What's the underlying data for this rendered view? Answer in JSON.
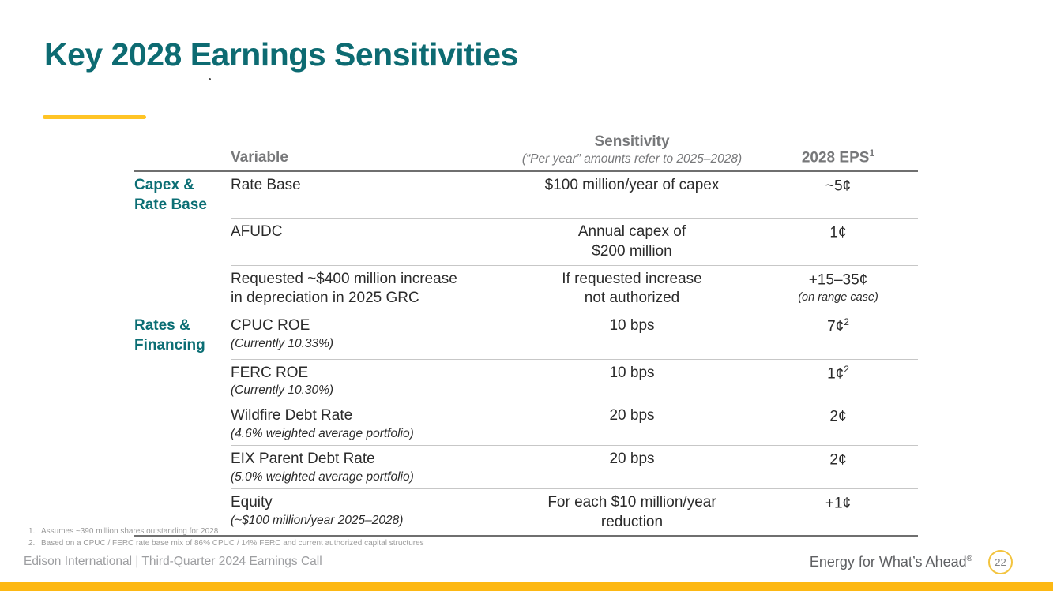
{
  "title": "Key 2028 Earnings Sensitivities",
  "colors": {
    "brand_teal": "#0D6B72",
    "accent_yellow": "#FFC425",
    "bottom_bar_yellow": "#FDB813",
    "header_gray": "#77787A"
  },
  "table": {
    "header": {
      "variable": "Variable",
      "sensitivity": "Sensitivity",
      "sensitivity_note": "(“Per year” amounts refer to 2025–2028)",
      "eps": "2028 EPS",
      "eps_sup": "1"
    },
    "rows": [
      {
        "group": "Capex &\nRate Base",
        "variable": "Rate Base",
        "variable_note": "",
        "sensitivity": "$100 million/year of capex",
        "eps": "~5¢",
        "eps_sup": "",
        "eps_note": ""
      },
      {
        "group": "",
        "variable": "AFUDC",
        "variable_note": "",
        "sensitivity": "Annual capex of\n$200 million",
        "eps": "1¢",
        "eps_sup": "",
        "eps_note": ""
      },
      {
        "group": "",
        "variable": "Requested ~$400 million increase\nin depreciation in 2025 GRC",
        "variable_note": "",
        "sensitivity": "If requested increase\nnot authorized",
        "eps": "+15–35¢",
        "eps_sup": "",
        "eps_note": "(on range case)"
      },
      {
        "group": "Rates &\nFinancing",
        "variable": "CPUC ROE",
        "variable_note": "(Currently 10.33%)",
        "sensitivity": "10 bps",
        "eps": "7¢",
        "eps_sup": "2",
        "eps_note": ""
      },
      {
        "group": "",
        "variable": "FERC ROE",
        "variable_note": "(Currently 10.30%)",
        "sensitivity": "10 bps",
        "eps": "1¢",
        "eps_sup": "2",
        "eps_note": ""
      },
      {
        "group": "",
        "variable": "Wildfire Debt Rate",
        "variable_note": "(4.6% weighted average portfolio)",
        "sensitivity": "20 bps",
        "eps": "2¢",
        "eps_sup": "",
        "eps_note": ""
      },
      {
        "group": "",
        "variable": "EIX Parent Debt Rate",
        "variable_note": "(5.0% weighted average portfolio)",
        "sensitivity": "20 bps",
        "eps": "2¢",
        "eps_sup": "",
        "eps_note": ""
      },
      {
        "group": "",
        "variable": "Equity",
        "variable_note": "(~$100 million/year 2025–2028)",
        "sensitivity": "For each $10 million/year\nreduction",
        "eps": "+1¢",
        "eps_sup": "",
        "eps_note": ""
      }
    ]
  },
  "footnotes": [
    {
      "num": "1.",
      "text": "Assumes ~390 million shares outstanding for 2028"
    },
    {
      "num": "2.",
      "text": "Based on a CPUC / FERC rate base mix of 86% CPUC / 14% FERC and current authorized capital structures"
    }
  ],
  "footer": {
    "left": "Edison International  |  Third-Quarter 2024 Earnings Call",
    "tagline": "Energy for What’s Ahead",
    "tagline_sup": "®",
    "page_number": "22"
  }
}
